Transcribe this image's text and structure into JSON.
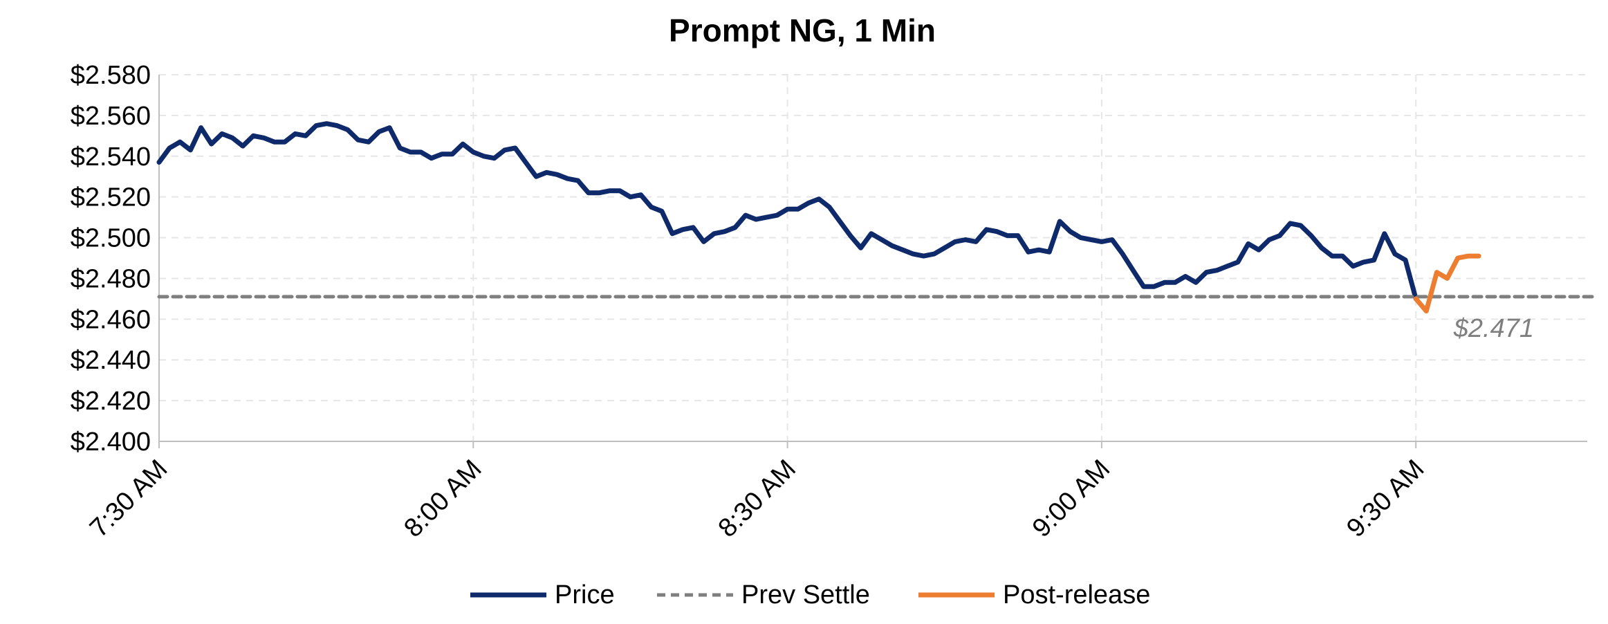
{
  "chart_data": {
    "type": "line",
    "title": "Prompt NG, 1 Min",
    "xlabel": "",
    "ylabel": "",
    "ylim": [
      2.4,
      2.58
    ],
    "y_ticks": [
      "$2.400",
      "$2.420",
      "$2.440",
      "$2.460",
      "$2.480",
      "$2.500",
      "$2.520",
      "$2.540",
      "$2.560",
      "$2.580"
    ],
    "x_ticks": [
      "7:30 AM",
      "8:00 AM",
      "8:30 AM",
      "9:00 AM",
      "9:30 AM"
    ],
    "x_range_minutes": [
      0,
      137
    ],
    "grid": true,
    "legend_position": "bottom",
    "annotation": "$2.471",
    "series": [
      {
        "name": "Price",
        "color": "#0f2a6b",
        "style": "solid",
        "x": [
          0,
          1,
          2,
          3,
          4,
          5,
          6,
          7,
          8,
          9,
          10,
          11,
          12,
          13,
          14,
          15,
          16,
          17,
          18,
          19,
          20,
          21,
          22,
          23,
          24,
          25,
          26,
          27,
          28,
          29,
          30,
          31,
          32,
          33,
          34,
          35,
          36,
          37,
          38,
          39,
          40,
          41,
          42,
          43,
          44,
          45,
          46,
          47,
          48,
          49,
          50,
          51,
          52,
          53,
          54,
          55,
          56,
          57,
          58,
          59,
          60,
          61,
          62,
          63,
          64,
          65,
          66,
          67,
          68,
          69,
          70,
          71,
          72,
          73,
          74,
          75,
          76,
          77,
          78,
          79,
          80,
          81,
          82,
          83,
          84,
          85,
          86,
          87,
          88,
          89,
          90,
          91,
          92,
          93,
          94,
          95,
          96,
          97,
          98,
          99,
          100,
          101,
          102,
          103,
          104,
          105,
          106,
          107,
          108,
          109,
          110,
          111,
          112,
          113,
          114,
          115,
          116,
          117,
          118,
          119,
          120
        ],
        "values": [
          2.537,
          2.544,
          2.547,
          2.543,
          2.554,
          2.546,
          2.551,
          2.549,
          2.545,
          2.55,
          2.549,
          2.547,
          2.547,
          2.551,
          2.55,
          2.555,
          2.556,
          2.555,
          2.553,
          2.548,
          2.547,
          2.552,
          2.554,
          2.544,
          2.542,
          2.542,
          2.539,
          2.541,
          2.541,
          2.546,
          2.542,
          2.54,
          2.539,
          2.543,
          2.544,
          2.537,
          2.53,
          2.532,
          2.531,
          2.529,
          2.528,
          2.522,
          2.522,
          2.523,
          2.523,
          2.52,
          2.521,
          2.515,
          2.513,
          2.502,
          2.504,
          2.505,
          2.498,
          2.502,
          2.503,
          2.505,
          2.511,
          2.509,
          2.51,
          2.511,
          2.514,
          2.514,
          2.517,
          2.519,
          2.515,
          2.508,
          2.501,
          2.495,
          2.502,
          2.499,
          2.496,
          2.494,
          2.492,
          2.491,
          2.492,
          2.495,
          2.498,
          2.499,
          2.498,
          2.504,
          2.503,
          2.501,
          2.501,
          2.493,
          2.494,
          2.493,
          2.508,
          2.503,
          2.5,
          2.499,
          2.498,
          2.499,
          2.492,
          2.484,
          2.476,
          2.476,
          2.478,
          2.478,
          2.481,
          2.478,
          2.483,
          2.484,
          2.486,
          2.488,
          2.497,
          2.494,
          2.499,
          2.501,
          2.507,
          2.506,
          2.501,
          2.495,
          2.491,
          2.491,
          2.486,
          2.488,
          2.489,
          2.502,
          2.492,
          2.489,
          2.47
        ]
      },
      {
        "name": "Prev Settle",
        "color": "#7f7f7f",
        "style": "dashed",
        "x": [
          0,
          137
        ],
        "values": [
          2.471,
          2.471
        ]
      },
      {
        "name": "Post-release",
        "color": "#ed7d31",
        "style": "solid",
        "x": [
          120,
          121,
          122,
          123,
          124,
          125,
          126
        ],
        "values": [
          2.47,
          2.464,
          2.483,
          2.48,
          2.49,
          2.491,
          2.491
        ]
      }
    ]
  }
}
